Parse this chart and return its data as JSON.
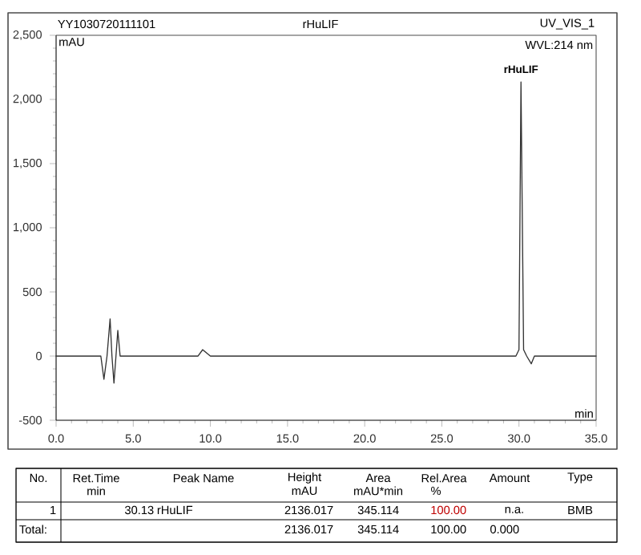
{
  "chart_data": {
    "type": "line",
    "title": "rHuLIF",
    "xlabel": "min",
    "ylabel": "mAU",
    "xlim": [
      0,
      35
    ],
    "ylim": [
      -500,
      2500
    ],
    "xticks": [
      {
        "value": 0,
        "label": "0.0"
      },
      {
        "value": 5,
        "label": "5.0"
      },
      {
        "value": 10,
        "label": "10.0"
      },
      {
        "value": 15,
        "label": "15.0"
      },
      {
        "value": 20,
        "label": "20.0"
      },
      {
        "value": 25,
        "label": "25.0"
      },
      {
        "value": 30,
        "label": "30.0"
      },
      {
        "value": 35,
        "label": "35.0"
      }
    ],
    "yticks": [
      -500,
      0,
      500,
      {
        "value": 1000,
        "label": "1,000"
      },
      {
        "value": 1500,
        "label": "1,500"
      },
      {
        "value": 2000,
        "label": "2,000"
      },
      {
        "value": 2500,
        "label": "2,500"
      }
    ],
    "series": [
      {
        "color": "#333333",
        "x": [
          0,
          2.9,
          3.1,
          3.3,
          3.5,
          3.62,
          3.75,
          3.88,
          4.0,
          4.15,
          9.2,
          9.5,
          10.0,
          29.8,
          30.0,
          30.13,
          30.3,
          30.5,
          30.8,
          31.0,
          35
        ],
        "values": [
          0,
          0,
          -180,
          0,
          290,
          0,
          -210,
          0,
          200,
          0,
          0,
          50,
          0,
          0,
          50,
          2136,
          50,
          0,
          -60,
          0,
          0
        ]
      }
    ],
    "annotations": [
      "YY1030720111101",
      "UV_VIS_1",
      "WVL:214 nm",
      {
        "text": "rHuLIF",
        "x": 30.13,
        "y": 2136
      },
      "No.",
      "Ret.Time",
      "min",
      "Peak Name",
      "Height",
      "mAU",
      "Area",
      "mAU*min",
      "Rel.Area",
      "%",
      "Amount",
      "Type",
      "1",
      "30.13",
      "rHuLIF",
      "2136.017",
      "345.114",
      "100.00",
      "n.a.",
      "BMB",
      "Total:",
      "2136.017",
      "345.114",
      "100.00",
      "0.000"
    ]
  }
}
